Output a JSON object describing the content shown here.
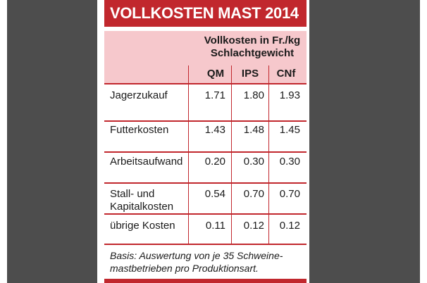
{
  "title": "VOLLKOSTEN MAST 2014",
  "header": {
    "main_line1": "Vollkosten in Fr./kg",
    "main_line2": "Schlachtgewicht",
    "columns": [
      "QM",
      "IPS",
      "CNf"
    ]
  },
  "rows": [
    {
      "label": [
        "Jagerzukauf"
      ],
      "values": [
        "1.71",
        "1.80",
        "1.93"
      ]
    },
    {
      "label": [
        "Futterkosten"
      ],
      "values": [
        "1.43",
        "1.48",
        "1.45"
      ]
    },
    {
      "label": [
        "Arbeitsaufwand"
      ],
      "values": [
        "0.20",
        "0.30",
        "0.30"
      ]
    },
    {
      "label": [
        "Stall- und",
        "Kapitalkosten"
      ],
      "values": [
        "0.54",
        "0.70",
        "0.70"
      ]
    },
    {
      "label": [
        "übrige Kosten"
      ],
      "values": [
        "0.11",
        "0.12",
        "0.12"
      ]
    }
  ],
  "footnote": {
    "line1": "Basis: Auswertung von je 35 Schweine-",
    "line2": "mastbetrieben pro Produktionsart."
  },
  "colors": {
    "accent": "#c1272d",
    "header_bg": "#f6c8cc",
    "side_gray": "#4d4d4d"
  }
}
